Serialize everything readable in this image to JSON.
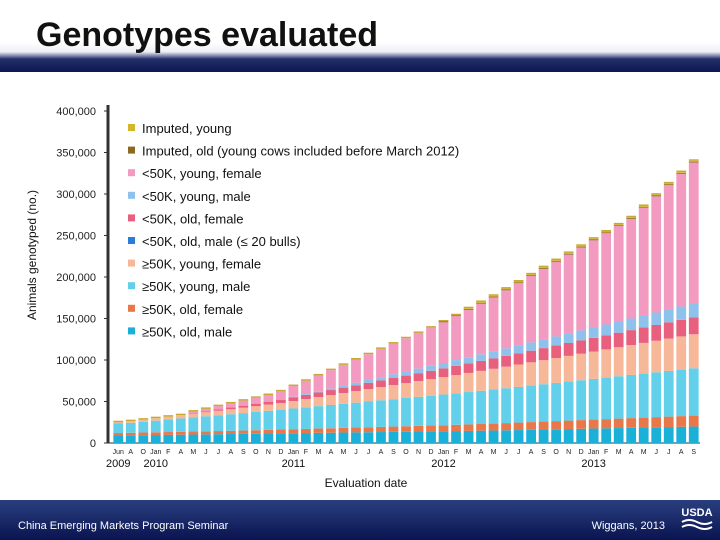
{
  "slide": {
    "title": "Genotypes evaluated",
    "footer_left": "China Emerging Markets Program Seminar",
    "footer_right": "Wiggans, 2013",
    "logo_text": "USDA"
  },
  "colors": {
    "header_bar": "#0c1650",
    "footer_bar": "#0a1450"
  },
  "chart_data": {
    "type": "bar",
    "stacked": true,
    "xlabel": "Evaluation date",
    "ylabel": "Animals genotyped (no.)",
    "ylim": [
      0,
      400000
    ],
    "yticks": [
      0,
      50000,
      100000,
      150000,
      200000,
      250000,
      300000,
      350000,
      400000
    ],
    "ytick_labels": [
      "0",
      "50,000",
      "100,000",
      "150,000",
      "200,000",
      "250,000",
      "300,000",
      "350,000",
      "400,000"
    ],
    "legend_position": "top-left",
    "categories": [
      "Jun",
      "A",
      "O",
      "Jan",
      "F",
      "A",
      "M",
      "J",
      "J",
      "A",
      "S",
      "O",
      "N",
      "D",
      "Jan",
      "F",
      "M",
      "A",
      "M",
      "J",
      "J",
      "A",
      "S",
      "O",
      "N",
      "D",
      "Jan",
      "F",
      "M",
      "A",
      "M",
      "J",
      "J",
      "A",
      "S",
      "O",
      "N",
      "D",
      "Jan",
      "F",
      "M",
      "A",
      "M",
      "J",
      "J",
      "A",
      "S"
    ],
    "year_labels": [
      {
        "label": "2009",
        "index": 0
      },
      {
        "label": "2010",
        "index": 3
      },
      {
        "label": "2011",
        "index": 14
      },
      {
        "label": "2012",
        "index": 26
      },
      {
        "label": "2013",
        "index": 38
      }
    ],
    "series": [
      {
        "name": "≥50K, old, male",
        "color": "#1ab0d8",
        "values": [
          9000,
          9200,
          9400,
          9600,
          9800,
          10000,
          10200,
          10400,
          10600,
          10800,
          11000,
          11200,
          11400,
          11600,
          11800,
          12000,
          12200,
          12400,
          12600,
          12800,
          13000,
          13200,
          13400,
          13600,
          13800,
          14000,
          14200,
          14400,
          14600,
          14800,
          15000,
          15300,
          15600,
          15900,
          16200,
          16500,
          16800,
          17100,
          17400,
          17700,
          18000,
          18300,
          18600,
          18900,
          19200,
          19500,
          19800
        ]
      },
      {
        "name": "≥50K, old, female",
        "color": "#e8784a",
        "values": [
          3000,
          3100,
          3200,
          3300,
          3400,
          3500,
          3600,
          3700,
          3800,
          3900,
          4000,
          4200,
          4400,
          4600,
          4800,
          5000,
          5200,
          5400,
          5600,
          5800,
          6000,
          6200,
          6400,
          6600,
          6800,
          7000,
          7200,
          7500,
          7800,
          8100,
          8400,
          8700,
          9000,
          9300,
          9600,
          9900,
          10200,
          10500,
          10800,
          11100,
          11400,
          11700,
          12000,
          12300,
          12600,
          12900,
          13200
        ]
      },
      {
        "name": "≥50K, young, male",
        "color": "#62d0ea",
        "values": [
          11500,
          12000,
          13000,
          14000,
          15000,
          16000,
          17000,
          18000,
          19000,
          20000,
          21000,
          22000,
          23000,
          24000,
          25000,
          26000,
          27000,
          28000,
          29000,
          30000,
          31000,
          32000,
          33000,
          34000,
          35000,
          36000,
          37000,
          38000,
          39000,
          40000,
          41000,
          42000,
          43000,
          44000,
          45000,
          46000,
          47000,
          48000,
          49000,
          50000,
          51000,
          52000,
          53000,
          54000,
          55000,
          56000,
          57000
        ]
      },
      {
        "name": "≥50K, young, female",
        "color": "#f6b898",
        "values": [
          1500,
          2000,
          2500,
          3000,
          3500,
          4000,
          4500,
          5000,
          5500,
          6000,
          6500,
          7000,
          7500,
          8000,
          9000,
          10000,
          11000,
          12000,
          13000,
          14000,
          15000,
          16000,
          17000,
          18000,
          19000,
          20000,
          21000,
          22000,
          23000,
          24000,
          25000,
          26000,
          27000,
          28000,
          29000,
          30000,
          31000,
          32000,
          33000,
          34000,
          35000,
          36000,
          37000,
          38000,
          39000,
          40000,
          41000
        ]
      },
      {
        "name": "<50K, old, male (≤   20 bulls)",
        "color": "#2a7ed8",
        "values": [
          0,
          0,
          0,
          0,
          0,
          0,
          0,
          0,
          0,
          0,
          0,
          0,
          0,
          0,
          0,
          0,
          0,
          0,
          0,
          0,
          0,
          0,
          0,
          0,
          0,
          0,
          0,
          0,
          0,
          0,
          0,
          0,
          0,
          0,
          0,
          0,
          0,
          0,
          0,
          0,
          0,
          0,
          0,
          0,
          0,
          0,
          0
        ]
      },
      {
        "name": "<50K, old, female",
        "color": "#e8607e",
        "values": [
          0,
          0,
          0,
          0,
          0,
          0,
          500,
          1000,
          1500,
          2000,
          2500,
          3000,
          3500,
          4000,
          4500,
          5000,
          5500,
          6000,
          6500,
          7000,
          7500,
          8000,
          8500,
          9000,
          9500,
          10000,
          10500,
          11000,
          11500,
          12000,
          12500,
          13000,
          13500,
          14000,
          14500,
          15000,
          15500,
          16000,
          16500,
          17000,
          17500,
          18000,
          18500,
          19000,
          19500,
          20000,
          20500
        ]
      },
      {
        "name": "<50K, young, male",
        "color": "#8ec2ec",
        "values": [
          0,
          0,
          0,
          0,
          0,
          0,
          0,
          0,
          0,
          0,
          0,
          0,
          0,
          0,
          500,
          1000,
          1500,
          2000,
          2500,
          3000,
          3500,
          4000,
          4500,
          5000,
          5500,
          6000,
          6500,
          7000,
          7500,
          8000,
          8500,
          9000,
          9500,
          10000,
          10500,
          11000,
          11500,
          12000,
          12500,
          13000,
          13500,
          14000,
          14500,
          15000,
          15500,
          16000,
          16500
        ]
      },
      {
        "name": "<50K, young, female",
        "color": "#f29ac0",
        "values": [
          0,
          0,
          0,
          0,
          0,
          0,
          2000,
          3000,
          4000,
          5000,
          6000,
          7000,
          8000,
          10000,
          13000,
          16000,
          19000,
          22000,
          25000,
          28000,
          31000,
          34000,
          37000,
          40000,
          43000,
          46000,
          49000,
          53000,
          57000,
          61000,
          65000,
          70000,
          75000,
          80000,
          85000,
          90000,
          95000,
          100000,
          105000,
          110000,
          115000,
          120000,
          130000,
          140000,
          150000,
          160000,
          170000
        ]
      },
      {
        "name": "Imputed, old (young cows included before March 2012)",
        "color": "#8a6a20",
        "values": [
          0,
          0,
          0,
          0,
          0,
          0,
          0,
          0,
          0,
          0,
          0,
          0,
          0,
          0,
          0,
          0,
          0,
          0,
          0,
          0,
          0,
          0,
          0,
          0,
          0,
          0,
          1000,
          1000,
          1000,
          1000,
          1000,
          1000,
          1000,
          1000,
          1000,
          1000,
          1000,
          1000,
          1000,
          1000,
          1000,
          1000,
          1000,
          1000,
          1000,
          1000,
          1000
        ]
      },
      {
        "name": "Imputed, young",
        "color": "#d4b62c",
        "values": [
          0,
          0,
          0,
          0,
          0,
          0,
          0,
          0,
          0,
          0,
          0,
          0,
          0,
          0,
          0,
          0,
          0,
          0,
          0,
          0,
          0,
          0,
          0,
          0,
          0,
          0,
          0,
          0,
          1000,
          1000,
          1000,
          1000,
          1000,
          1000,
          1000,
          1000,
          1000,
          1000,
          1000,
          1000,
          1000,
          1000,
          1000,
          1000,
          1000,
          1000,
          1000
        ]
      }
    ]
  }
}
